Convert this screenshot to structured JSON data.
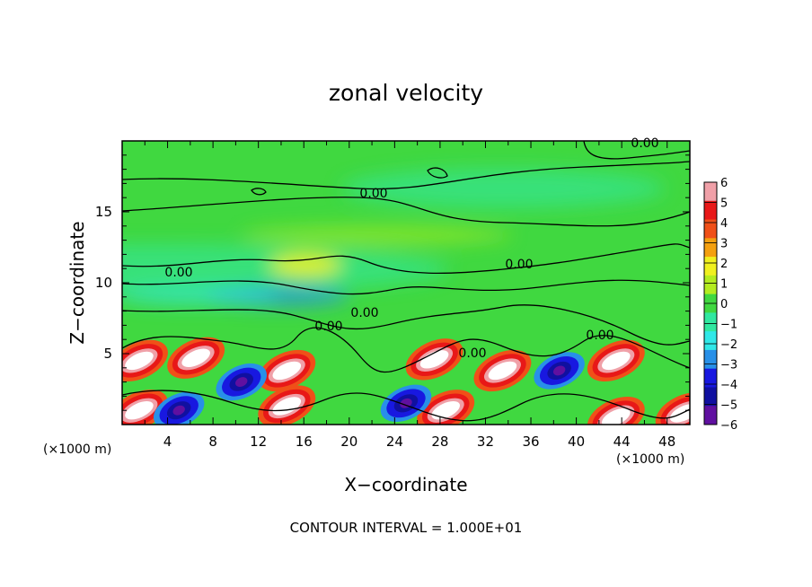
{
  "chart_data": {
    "type": "heatmap",
    "title": "zonal velocity",
    "xlabel": "X−coordinate",
    "ylabel": "Z−coordinate",
    "x_unit_left": "(×1000 m)",
    "x_unit_right": "(×1000 m)",
    "xlim": [
      0,
      50
    ],
    "ylim": [
      0,
      20
    ],
    "x_ticks": [
      4,
      8,
      12,
      16,
      20,
      24,
      28,
      32,
      36,
      40,
      44,
      48
    ],
    "y_ticks": [
      5,
      10,
      15
    ],
    "colorbar": {
      "range": [
        -6,
        6
      ],
      "ticks": [
        "6",
        "5",
        "4",
        "3",
        "2",
        "1",
        "0",
        "−1",
        "−2",
        "−3",
        "−4",
        "−5",
        "−6"
      ],
      "colors": [
        "#f0a0a8",
        "#e81818",
        "#f05018",
        "#f4a010",
        "#f0f020",
        "#b4ec20",
        "#40d840",
        "#30e8a0",
        "#30e8e8",
        "#2890e8",
        "#1818e0",
        "#1010a0",
        "#6010a0"
      ]
    },
    "contour_labels": [
      "0.00",
      "0.00",
      "0.00",
      "0.00",
      "0.00",
      "0.00",
      "0.00",
      "0.00"
    ],
    "contour_interval": "1.000E+01",
    "features": [
      {
        "kind": "max",
        "x": 1.5,
        "z": 4.5
      },
      {
        "kind": "max",
        "x": 6.5,
        "z": 4.7
      },
      {
        "kind": "max",
        "x": 14.5,
        "z": 3.8
      },
      {
        "kind": "max",
        "x": 27.5,
        "z": 4.6
      },
      {
        "kind": "max",
        "x": 33.5,
        "z": 3.8
      },
      {
        "kind": "max",
        "x": 43.5,
        "z": 4.5
      },
      {
        "kind": "max",
        "x": 1.5,
        "z": 1.0
      },
      {
        "kind": "max",
        "x": 14.5,
        "z": 1.3
      },
      {
        "kind": "max",
        "x": 28.5,
        "z": 1.0
      },
      {
        "kind": "max",
        "x": 43.5,
        "z": 0.5
      },
      {
        "kind": "max",
        "x": 49.5,
        "z": 0.8
      },
      {
        "kind": "min",
        "x": 10.5,
        "z": 3.0
      },
      {
        "kind": "min",
        "x": 38.5,
        "z": 3.8
      },
      {
        "kind": "min",
        "x": 25.0,
        "z": 1.5
      },
      {
        "kind": "min",
        "x": 5.0,
        "z": 1.0
      }
    ]
  },
  "footer": {
    "contour_interval_text": "CONTOUR INTERVAL = 1.000E+01"
  }
}
